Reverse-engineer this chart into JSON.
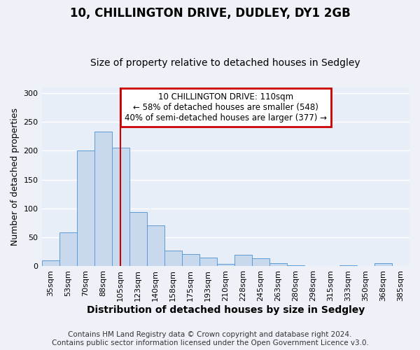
{
  "title": "10, CHILLINGTON DRIVE, DUDLEY, DY1 2GB",
  "subtitle": "Size of property relative to detached houses in Sedgley",
  "xlabel": "Distribution of detached houses by size in Sedgley",
  "ylabel": "Number of detached properties",
  "bar_labels": [
    "35sqm",
    "53sqm",
    "70sqm",
    "88sqm",
    "105sqm",
    "123sqm",
    "140sqm",
    "158sqm",
    "175sqm",
    "193sqm",
    "210sqm",
    "228sqm",
    "245sqm",
    "263sqm",
    "280sqm",
    "298sqm",
    "315sqm",
    "333sqm",
    "350sqm",
    "368sqm",
    "385sqm"
  ],
  "bar_values": [
    10,
    59,
    200,
    233,
    205,
    94,
    71,
    27,
    21,
    15,
    4,
    20,
    14,
    5,
    2,
    0,
    0,
    2,
    0,
    5,
    0
  ],
  "bar_color": "#c9d9ed",
  "bar_edge_color": "#5b9bd5",
  "ylim": [
    0,
    310
  ],
  "yticks": [
    0,
    50,
    100,
    150,
    200,
    250,
    300
  ],
  "vline_x": 4.0,
  "vline_color": "#cc0000",
  "annotation_title": "10 CHILLINGTON DRIVE: 110sqm",
  "annotation_line1": "← 58% of detached houses are smaller (548)",
  "annotation_line2": "40% of semi-detached houses are larger (377) →",
  "annotation_box_color": "#cc0000",
  "footer_line1": "Contains HM Land Registry data © Crown copyright and database right 2024.",
  "footer_line2": "Contains public sector information licensed under the Open Government Licence v3.0.",
  "background_color": "#eef2f8",
  "plot_background": "#e8eef8",
  "grid_color": "#ffffff",
  "title_fontsize": 12,
  "subtitle_fontsize": 10,
  "xlabel_fontsize": 10,
  "ylabel_fontsize": 9,
  "tick_fontsize": 8,
  "footer_fontsize": 7.5
}
